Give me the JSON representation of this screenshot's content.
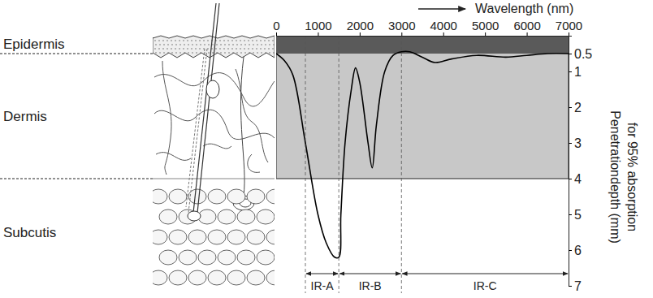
{
  "chart_data": {
    "type": "line",
    "x_label": "Wavelength (nm)",
    "y_label_lines": [
      "Penetrationdepth (mm)",
      "for 95% absorption"
    ],
    "x": [
      0,
      200,
      400,
      700,
      1000,
      1200,
      1400,
      1500,
      1550,
      1650,
      1800,
      1900,
      2000,
      2200,
      2300,
      2400,
      2600,
      2800,
      3000,
      3200,
      3500,
      3800,
      4200,
      4800,
      5500,
      6000,
      6500,
      7000
    ],
    "values": [
      0.5,
      0.7,
      1.1,
      3.0,
      5.0,
      5.8,
      6.2,
      6.2,
      5.0,
      3.0,
      1.5,
      0.9,
      1.3,
      3.0,
      3.7,
      2.5,
      1.0,
      0.55,
      0.45,
      0.45,
      0.6,
      0.75,
      0.65,
      0.55,
      0.6,
      0.55,
      0.5,
      0.5
    ],
    "color": "#000000",
    "xlim": [
      0,
      7000
    ],
    "xticks": [
      0,
      1000,
      2000,
      3000,
      4000,
      5000,
      6000,
      7000
    ],
    "ylim": [
      0,
      7
    ],
    "yticks": [
      0.5,
      1,
      2,
      3,
      4,
      5,
      6,
      7
    ],
    "layers": [
      {
        "label": "Epidermis",
        "depth": 0.5
      },
      {
        "label": "Dermis",
        "depth": 4
      },
      {
        "label": "Subcutis"
      }
    ],
    "bands": [
      {
        "label": "IR-A",
        "start": 700,
        "end": 1500
      },
      {
        "label": "IR-B",
        "start": 1500,
        "end": 3000
      },
      {
        "label": "IR-C",
        "start": 3000,
        "end": 7000
      }
    ]
  }
}
